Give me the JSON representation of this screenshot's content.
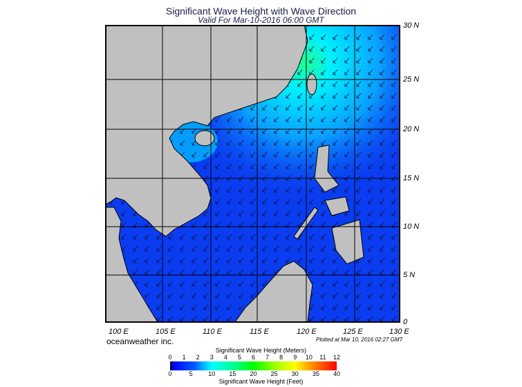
{
  "title": "Significant Wave Height with Wave Direction",
  "subtitle": "Valid For Mar-10-2016 06:00 GMT",
  "lat_labels": [
    "30 N",
    "25 N",
    "20 N",
    "15 N",
    "10 N",
    "5 N",
    "0"
  ],
  "lon_labels": [
    "100 E",
    "105 E",
    "110 E",
    "115 E",
    "120 E",
    "125 E",
    "130 E"
  ],
  "brand": "oceanweather inc.",
  "plotted": "Plotted at Mar 10, 2016 02:27 GMT",
  "colorbar": {
    "meters_title": "Significant Wave Height (Meters)",
    "feet_title": "Significant Wave Height (Feet)",
    "meters_ticks": [
      "0",
      "1",
      "2",
      "3",
      "4",
      "5",
      "6",
      "7",
      "8",
      "9",
      "10",
      "11",
      "12"
    ],
    "feet_ticks": [
      "0",
      "5",
      "10",
      "15",
      "20",
      "25",
      "30",
      "35",
      "40"
    ],
    "range_m": [
      0,
      12
    ]
  },
  "colors": {
    "land": "#c0c0c0",
    "sea_low": "#0a3cf0",
    "sea_mid": "#0aa0ff",
    "sea_high": "#00f0ff"
  }
}
